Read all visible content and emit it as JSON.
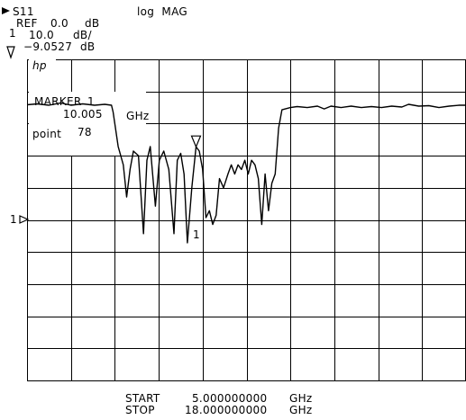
{
  "header": {
    "channel": "S11",
    "format": "log  MAG",
    "ref_label": "REF",
    "ref_value": "0.0",
    "ref_unit": "dB",
    "scale_value": "10.0",
    "scale_unit": "dB/",
    "marker_number": "1",
    "marker_readout_value": "−9.0527",
    "marker_readout_unit": "dB"
  },
  "logo": "hp",
  "marker_box": {
    "label": "MARKER",
    "number": "1",
    "freq_value": "10.005",
    "freq_unit": "GHz",
    "point_label": "point",
    "point_value": "78"
  },
  "ref_indicator": "1",
  "trace_marker_label": "1",
  "footer": {
    "start_label": "START",
    "start_value": "5.000000000",
    "start_unit": "GHz",
    "stop_label": "STOP",
    "stop_value": "18.000000000",
    "stop_unit": "GHz"
  },
  "chart_data": {
    "type": "line",
    "title": "",
    "xlabel": "",
    "ylabel": "",
    "x_unit": "GHz",
    "y_unit": "dB",
    "xlim": [
      5.0,
      18.0
    ],
    "ylim": [
      -60,
      10
    ],
    "grid": true,
    "reference_level_db": 0.0,
    "scale_db_per_div": 10.0,
    "marker": {
      "number": 1,
      "freq_ghz": 10.005,
      "value_db": -9.0527,
      "point": 78
    },
    "series": [
      {
        "x": [
          5.0,
          5.3,
          5.65,
          6.0,
          6.3,
          6.65,
          7.0,
          7.3,
          7.5,
          7.55,
          7.7,
          7.85,
          7.95,
          8.05,
          8.15,
          8.3,
          8.45,
          8.55,
          8.65,
          8.8,
          8.92,
          9.05,
          9.2,
          9.35,
          9.45,
          9.55,
          9.65,
          9.75,
          9.88,
          10.005,
          10.1,
          10.2,
          10.3,
          10.4,
          10.5,
          10.6,
          10.7,
          10.82,
          10.95,
          11.05,
          11.15,
          11.25,
          11.35,
          11.45,
          11.55,
          11.65,
          11.75,
          11.85,
          11.95,
          12.05,
          12.15,
          12.25,
          12.35,
          12.45,
          12.55,
          12.8,
          13.0,
          13.3,
          13.6,
          13.8,
          14.0,
          14.3,
          14.6,
          14.9,
          15.2,
          15.5,
          15.8,
          16.1,
          16.3,
          16.6,
          16.9,
          17.2,
          17.5,
          17.8,
          18.0
        ],
        "y": [
          0.1,
          0.3,
          0.0,
          0.5,
          0.0,
          0.3,
          0.0,
          0.2,
          0.0,
          -1.5,
          -9.0,
          -13.0,
          -20.0,
          -14.0,
          -10.0,
          -11.0,
          -28.0,
          -12.0,
          -9.0,
          -22.0,
          -12.0,
          -10.0,
          -14.0,
          -28.0,
          -12.0,
          -10.5,
          -15.0,
          -30.0,
          -18.0,
          -9.0527,
          -10.0,
          -14.0,
          -24.5,
          -23.0,
          -26.0,
          -24.0,
          -16.0,
          -18.0,
          -15.0,
          -13.0,
          -15.0,
          -13.0,
          -14.0,
          -12.0,
          -15.0,
          -12.0,
          -13.0,
          -16.0,
          -26.0,
          -15.0,
          -23.0,
          -17.0,
          -15.0,
          -5.0,
          -1.0,
          -0.5,
          -0.3,
          -0.5,
          -0.2,
          -0.8,
          -0.2,
          -0.5,
          -0.2,
          -0.5,
          -0.3,
          -0.5,
          -0.2,
          -0.4,
          0.2,
          -0.2,
          -0.1,
          -0.5,
          -0.2,
          0.0,
          0.0
        ]
      }
    ]
  }
}
